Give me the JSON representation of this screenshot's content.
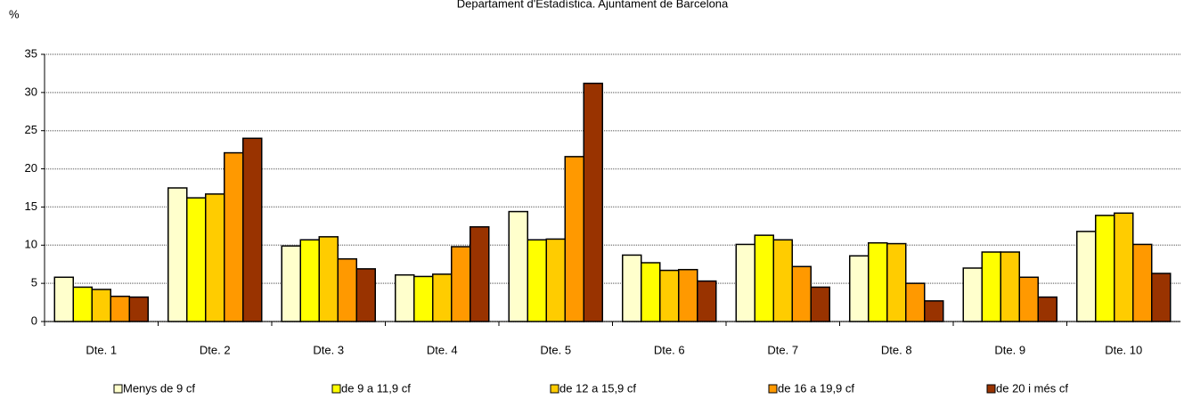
{
  "chart_data": {
    "type": "bar",
    "title": "Departament d'Estadística. Ajuntament de Barcelona",
    "y_label": "%",
    "categories": [
      "Dte. 1",
      "Dte. 2",
      "Dte. 3",
      "Dte. 4",
      "Dte. 5",
      "Dte. 6",
      "Dte. 7",
      "Dte. 8",
      "Dte. 9",
      "Dte. 10"
    ],
    "series": [
      {
        "name": "Menys de 9 cf",
        "color": "#ffffcc",
        "values": [
          5.8,
          17.5,
          9.9,
          6.1,
          14.4,
          8.7,
          10.1,
          8.6,
          7.0,
          11.8
        ]
      },
      {
        "name": "de 9 a 11,9 cf",
        "color": "#ffff00",
        "values": [
          4.5,
          16.2,
          10.7,
          5.9,
          10.7,
          7.7,
          11.3,
          10.3,
          9.1,
          13.9
        ]
      },
      {
        "name": "de 12 a 15,9 cf",
        "color": "#ffcc00",
        "values": [
          4.2,
          16.7,
          11.1,
          6.2,
          10.8,
          6.7,
          10.7,
          10.2,
          9.1,
          14.2
        ]
      },
      {
        "name": "de 16 a 19,9 cf",
        "color": "#ff9900",
        "values": [
          3.3,
          22.1,
          8.2,
          9.8,
          21.6,
          6.8,
          7.2,
          5.0,
          5.8,
          10.1
        ]
      },
      {
        "name": "de 20 i més cf",
        "color": "#993300",
        "values": [
          3.2,
          24.0,
          6.9,
          12.4,
          31.2,
          5.3,
          4.5,
          2.7,
          3.2,
          6.3
        ]
      }
    ],
    "ylim": [
      0,
      35
    ],
    "yticks": [
      0,
      5,
      10,
      15,
      20,
      25,
      30,
      35
    ],
    "grid": true,
    "legend": "bottom"
  }
}
